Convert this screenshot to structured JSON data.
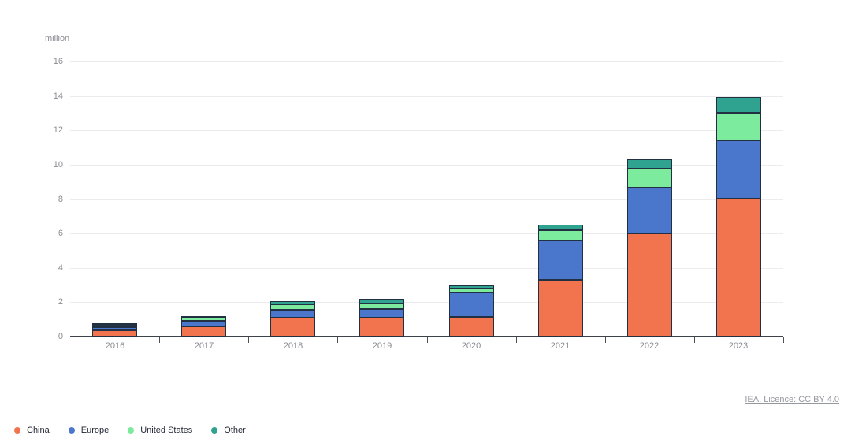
{
  "page": {
    "background": "#ffffff"
  },
  "chart_data": {
    "type": "bar",
    "stacked": true,
    "title": "",
    "unit_label": "million",
    "xlabel": "",
    "ylabel": "million",
    "categories": [
      "2016",
      "2017",
      "2018",
      "2019",
      "2020",
      "2021",
      "2022",
      "2023"
    ],
    "series": [
      {
        "name": "China",
        "color": "#F1744E",
        "values": [
          0.35,
          0.6,
          1.1,
          1.1,
          1.15,
          3.3,
          6.0,
          8.0
        ]
      },
      {
        "name": "Europe",
        "color": "#4A77CC",
        "values": [
          0.2,
          0.3,
          0.45,
          0.5,
          1.4,
          2.3,
          2.65,
          3.4
        ]
      },
      {
        "name": "United States",
        "color": "#7DEB9E",
        "values": [
          0.15,
          0.2,
          0.3,
          0.3,
          0.25,
          0.6,
          1.1,
          1.6
        ]
      },
      {
        "name": "Other",
        "color": "#2FA390",
        "values": [
          0.05,
          0.1,
          0.25,
          0.3,
          0.2,
          0.3,
          0.55,
          0.9
        ]
      }
    ],
    "totals": [
      0.75,
      1.2,
      2.1,
      2.2,
      3.0,
      6.5,
      10.3,
      13.9
    ],
    "ylim": [
      0,
      16
    ],
    "yticks": [
      0,
      2,
      4,
      6,
      8,
      10,
      12,
      14,
      16
    ],
    "grid": true,
    "legend_position": "bottom-left",
    "segment_border_color": "#223043",
    "gridline_color": "#ececee",
    "axis_line_color": "#3e434b",
    "tick_label_color": "#8b8b93",
    "legend_text_color": "#1d2330"
  },
  "footer": {
    "licence": "IEA. Licence: CC BY 4.0"
  }
}
